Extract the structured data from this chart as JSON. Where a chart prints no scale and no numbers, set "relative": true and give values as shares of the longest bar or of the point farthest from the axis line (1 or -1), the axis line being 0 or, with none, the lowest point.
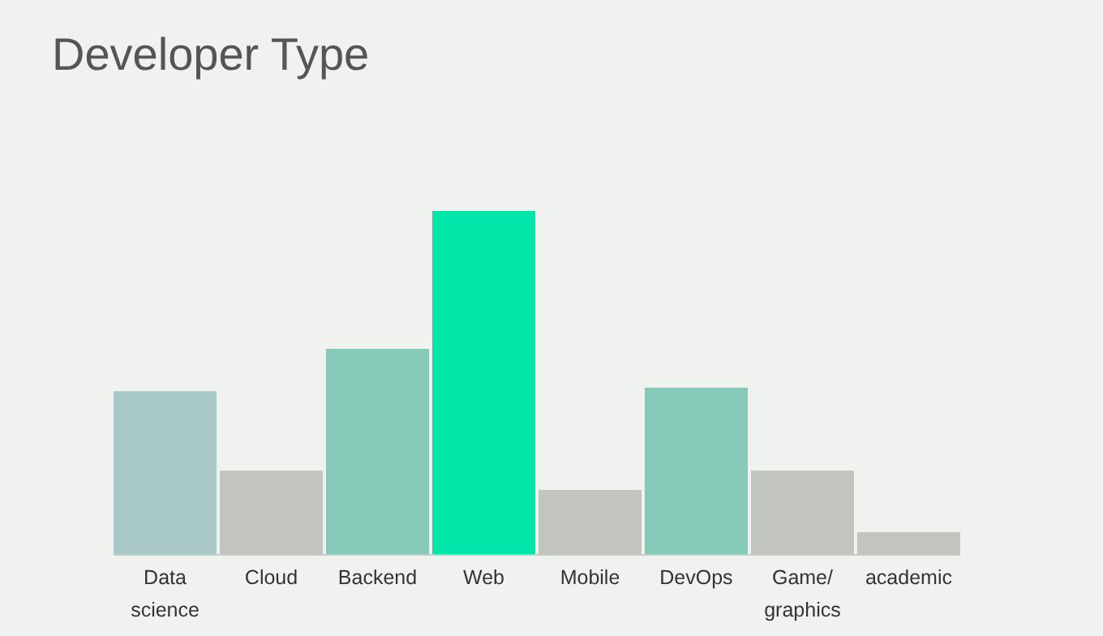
{
  "chart_data": {
    "type": "bar",
    "title": "Developer Type",
    "relative": true,
    "categories": [
      "Data science",
      "Cloud",
      "Backend",
      "Web",
      "Mobile",
      "DevOps",
      "Game/graphics",
      "academic"
    ],
    "values": [
      0.476,
      0.245,
      0.599,
      1,
      0.189,
      0.486,
      0.245,
      0.066
    ],
    "colors": [
      "#a9c9c9",
      "#c2c4c0",
      "#86c9b8",
      "#00e5a8",
      "#c2c4c0",
      "#86c9b8",
      "#c2c4c0",
      "#c2c4c0"
    ]
  }
}
